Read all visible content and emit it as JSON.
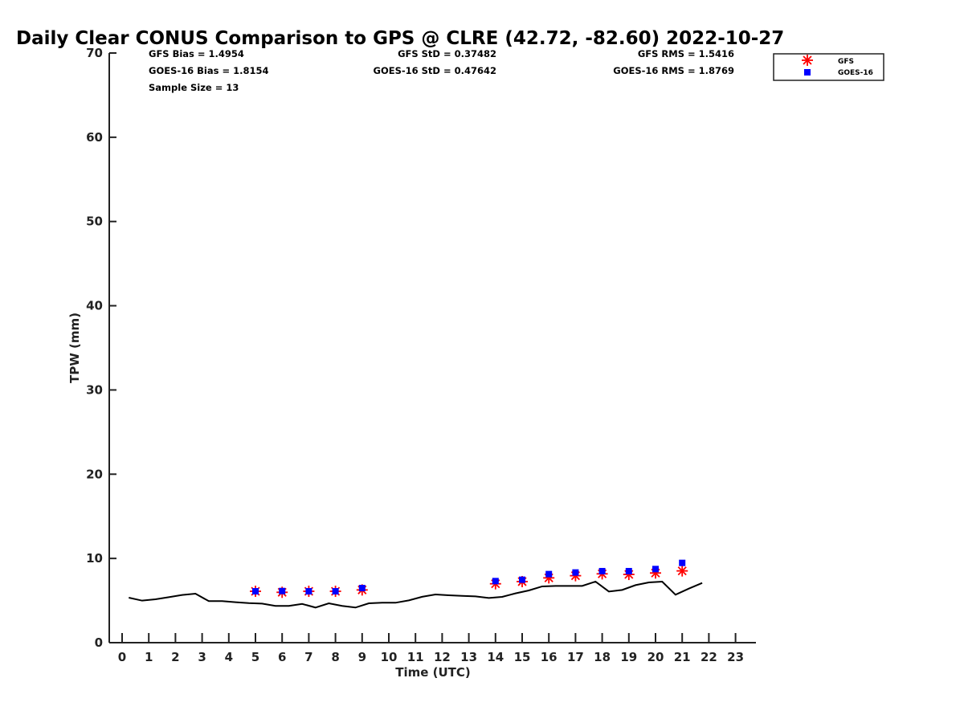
{
  "chart_data": {
    "type": "line",
    "title": "Daily Clear CONUS Comparison to GPS @ CLRE (42.72, -82.60) 2022-10-27",
    "xlabel": "Time (UTC)",
    "ylabel": "TPW (mm)",
    "xlim": [
      -0.5,
      23.75
    ],
    "ylim": [
      0,
      70
    ],
    "xticks": [
      0,
      1,
      2,
      3,
      4,
      5,
      6,
      7,
      8,
      9,
      10,
      11,
      12,
      13,
      14,
      15,
      16,
      17,
      18,
      19,
      20,
      21,
      22,
      23
    ],
    "yticks": [
      0,
      10,
      20,
      30,
      40,
      50,
      60,
      70
    ],
    "grid": false,
    "legend_position": "top-right-outside",
    "stats": {
      "gfs_bias": "GFS Bias = 1.4954",
      "goes_bias": "GOES-16 Bias = 1.8154",
      "sample_size": "Sample Size = 13",
      "gfs_std": "GFS StD = 0.37482",
      "goes_std": "GOES-16 StD = 0.47642",
      "gfs_rms": "GFS RMS = 1.5416",
      "goes_rms": "GOES-16 RMS = 1.8769"
    },
    "series": [
      {
        "name": "GPS",
        "kind": "line",
        "color": "#000000",
        "x": [
          0.25,
          0.75,
          1.25,
          1.75,
          2.25,
          2.75,
          3.25,
          3.75,
          4.25,
          4.75,
          5.25,
          5.75,
          6.25,
          6.75,
          7.25,
          7.75,
          8.25,
          8.75,
          9.25,
          9.75,
          10.25,
          10.75,
          11.25,
          11.75,
          12.25,
          12.75,
          13.25,
          13.75,
          14.25,
          14.75,
          15.25,
          15.75,
          16.25,
          16.75,
          17.25,
          17.75,
          18.25,
          18.75,
          19.25,
          19.75,
          20.25,
          20.75,
          21.25,
          21.75
        ],
        "y": [
          5.34,
          4.99,
          5.15,
          5.4,
          5.66,
          5.82,
          4.93,
          4.93,
          4.8,
          4.7,
          4.64,
          4.36,
          4.36,
          4.6,
          4.17,
          4.67,
          4.36,
          4.17,
          4.67,
          4.74,
          4.74,
          5.02,
          5.45,
          5.72,
          5.63,
          5.56,
          5.5,
          5.31,
          5.44,
          5.85,
          6.2,
          6.68,
          6.74,
          6.74,
          6.74,
          7.25,
          6.07,
          6.26,
          6.83,
          7.15,
          7.25,
          5.69,
          6.42,
          7.09
        ]
      },
      {
        "name": "GFS",
        "kind": "asterisk",
        "color": "#ff0000",
        "x": [
          5,
          6,
          7,
          8,
          9,
          14,
          15,
          16,
          17,
          18,
          19,
          20,
          21
        ],
        "y": [
          6.1,
          5.98,
          6.1,
          6.1,
          6.26,
          6.99,
          7.25,
          7.69,
          7.95,
          8.17,
          8.1,
          8.27,
          8.52
        ]
      },
      {
        "name": "GOES-16",
        "kind": "square",
        "color": "#0000ff",
        "x": [
          5,
          6,
          7,
          8,
          9,
          14,
          15,
          16,
          17,
          18,
          19,
          20,
          21
        ],
        "y": [
          6.1,
          6.13,
          6.1,
          6.1,
          6.48,
          7.31,
          7.47,
          8.14,
          8.33,
          8.49,
          8.49,
          8.74,
          9.47
        ]
      }
    ]
  }
}
